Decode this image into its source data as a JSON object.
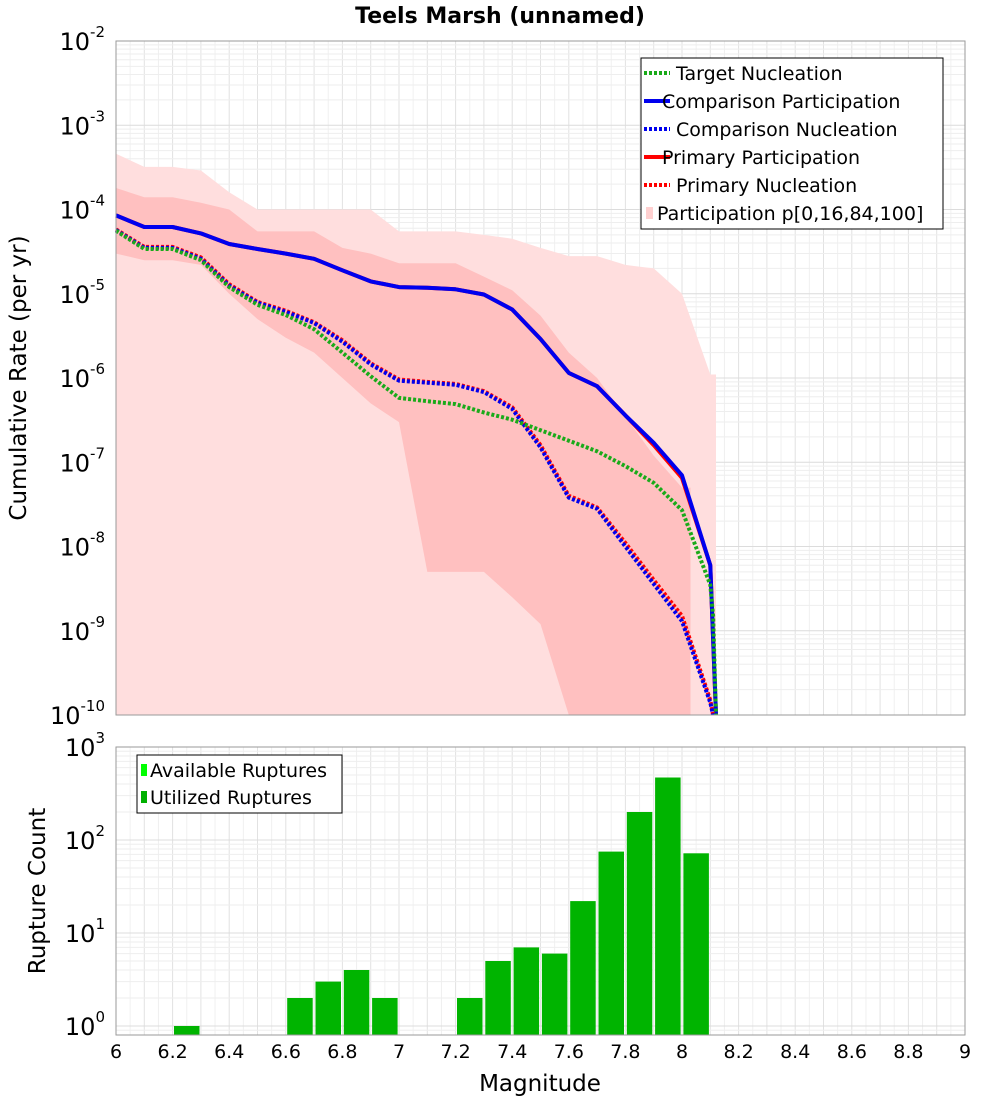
{
  "chart_data": [
    {
      "type": "line",
      "title": "Teels Marsh (unnamed)",
      "xlabel": "Magnitude",
      "ylabel": "Cumulative Rate (per yr)",
      "xlim": [
        6,
        9
      ],
      "ylim": [
        1e-10,
        0.01
      ],
      "yscale": "log",
      "ytick_base": "10",
      "yticks": [
        {
          "exp": "-10",
          "value": 1e-10
        },
        {
          "exp": "-9",
          "value": 1e-09
        },
        {
          "exp": "-8",
          "value": 1e-08
        },
        {
          "exp": "-7",
          "value": 1e-07
        },
        {
          "exp": "-6",
          "value": 1e-06
        },
        {
          "exp": "-5",
          "value": 1e-05
        },
        {
          "exp": "-4",
          "value": 0.0001
        },
        {
          "exp": "-3",
          "value": 0.001
        },
        {
          "exp": "-2",
          "value": 0.01
        }
      ],
      "legend_position": "top-right",
      "legend": [
        {
          "label": "Target Nucleation",
          "color": "#1aaa1a",
          "style": "dotted"
        },
        {
          "label": "Comparison Participation",
          "color": "#0000ee",
          "style": "solid"
        },
        {
          "label": "Comparison Nucleation",
          "color": "#0000ee",
          "style": "dotted"
        },
        {
          "label": "Primary Participation",
          "color": "#ff0000",
          "style": "solid"
        },
        {
          "label": "Primary Nucleation",
          "color": "#ff0000",
          "style": "dotted"
        },
        {
          "label": "Participation p[0,16,84,100]",
          "color": "#ffd0d0",
          "style": "box"
        }
      ],
      "bands": [
        {
          "name": "p0-p100",
          "color": "#ffdede",
          "x": [
            6.0,
            6.1,
            6.2,
            6.3,
            6.4,
            6.5,
            6.6,
            6.7,
            6.8,
            6.9,
            7.0,
            7.1,
            7.2,
            7.3,
            7.4,
            7.5,
            7.6,
            7.7,
            7.8,
            7.9,
            8.0,
            8.1,
            8.12
          ],
          "upper": [
            0.00046,
            0.00032,
            0.00032,
            0.00029,
            0.00016,
            0.0001,
            0.0001,
            0.0001,
            0.0001,
            0.0001,
            5.5e-05,
            5.5e-05,
            5.5e-05,
            5e-05,
            4.5e-05,
            3.5e-05,
            2.8e-05,
            2.8e-05,
            2.2e-05,
            2e-05,
            1e-05,
            1.1e-06,
            1.1e-06
          ],
          "lower": [
            1e-10,
            1e-10,
            1e-10,
            1e-10,
            1e-10,
            1e-10,
            1e-10,
            1e-10,
            1e-10,
            1e-10,
            1e-10,
            1e-10,
            1e-10,
            1e-10,
            1e-10,
            1e-10,
            1e-10,
            1e-10,
            1e-10,
            1e-10,
            1e-10,
            1e-10,
            1e-10
          ]
        },
        {
          "name": "p16-p84",
          "color": "#ffc0c0",
          "x": [
            6.0,
            6.1,
            6.2,
            6.3,
            6.4,
            6.5,
            6.6,
            6.7,
            6.8,
            6.9,
            7.0,
            7.1,
            7.2,
            7.3,
            7.4,
            7.5,
            7.6,
            7.7,
            7.8,
            7.9,
            8.0,
            8.03
          ],
          "upper": [
            0.00018,
            0.00014,
            0.00014,
            0.00012,
            0.0001,
            5.5e-05,
            5.5e-05,
            5.5e-05,
            3.5e-05,
            3e-05,
            2.3e-05,
            2.3e-05,
            2.3e-05,
            1.6e-05,
            1.1e-05,
            5.5e-06,
            2e-06,
            1e-06,
            3.5e-07,
            1.2e-07,
            5e-08,
            5e-08
          ],
          "lower": [
            3e-05,
            2.5e-05,
            2.5e-05,
            2.2e-05,
            1e-05,
            5e-06,
            3e-06,
            2e-06,
            1e-06,
            5e-07,
            3e-07,
            5e-09,
            5e-09,
            5e-09,
            2.5e-09,
            1.2e-09,
            1e-10,
            1e-10,
            1e-10,
            1e-10,
            1e-10,
            1e-10
          ]
        }
      ],
      "series": [
        {
          "name": "Primary Participation",
          "color": "#ff0000",
          "style": "solid",
          "x": [
            6.0,
            6.1,
            6.2,
            6.3,
            6.4,
            6.5,
            6.6,
            6.7,
            6.8,
            6.9,
            7.0,
            7.1,
            7.2,
            7.3,
            7.4,
            7.5,
            7.6,
            7.7,
            7.8,
            7.9,
            8.0,
            8.1,
            8.12
          ],
          "y": [
            8.5e-05,
            6.2e-05,
            6.2e-05,
            5.2e-05,
            3.9e-05,
            3.4e-05,
            3e-05,
            2.6e-05,
            1.9e-05,
            1.4e-05,
            1.2e-05,
            1.18e-05,
            1.13e-05,
            9.8e-06,
            6.5e-06,
            2.9e-06,
            1.15e-06,
            8e-07,
            3.6e-07,
            1.6e-07,
            6.5e-08,
            6e-09,
            1e-10
          ]
        },
        {
          "name": "Comparison Participation",
          "color": "#0000ee",
          "style": "solid",
          "x": [
            6.0,
            6.1,
            6.2,
            6.3,
            6.4,
            6.5,
            6.6,
            6.7,
            6.8,
            6.9,
            7.0,
            7.1,
            7.2,
            7.3,
            7.4,
            7.5,
            7.6,
            7.7,
            7.8,
            7.9,
            8.0,
            8.1,
            8.12
          ],
          "y": [
            8.5e-05,
            6.2e-05,
            6.2e-05,
            5.2e-05,
            3.9e-05,
            3.4e-05,
            3e-05,
            2.6e-05,
            1.9e-05,
            1.4e-05,
            1.2e-05,
            1.18e-05,
            1.13e-05,
            9.8e-06,
            6.5e-06,
            2.9e-06,
            1.15e-06,
            8e-07,
            3.6e-07,
            1.7e-07,
            7e-08,
            6e-09,
            1e-10
          ]
        },
        {
          "name": "Primary Nucleation",
          "color": "#ff0000",
          "style": "dotted",
          "x": [
            6.0,
            6.1,
            6.2,
            6.3,
            6.4,
            6.5,
            6.6,
            6.7,
            6.8,
            6.9,
            7.0,
            7.1,
            7.2,
            7.3,
            7.4,
            7.5,
            7.6,
            7.7,
            7.8,
            7.9,
            8.0,
            8.1,
            8.11
          ],
          "y": [
            5.8e-05,
            3.6e-05,
            3.6e-05,
            2.7e-05,
            1.3e-05,
            8e-06,
            6.3e-06,
            4.6e-06,
            2.8e-06,
            1.5e-06,
            9.6e-07,
            9e-07,
            8.5e-07,
            7e-07,
            4.5e-07,
            1.6e-07,
            4e-08,
            2.9e-08,
            1.1e-08,
            4e-09,
            1.5e-09,
            1.5e-10,
            1e-10
          ]
        },
        {
          "name": "Comparison Nucleation",
          "color": "#0000ee",
          "style": "dotted",
          "x": [
            6.0,
            6.1,
            6.2,
            6.3,
            6.4,
            6.5,
            6.6,
            6.7,
            6.8,
            6.9,
            7.0,
            7.1,
            7.2,
            7.3,
            7.4,
            7.5,
            7.6,
            7.7,
            7.8,
            7.9,
            8.0,
            8.1,
            8.11
          ],
          "y": [
            5.7e-05,
            3.5e-05,
            3.5e-05,
            2.6e-05,
            1.25e-05,
            7.8e-06,
            6.1e-06,
            4.5e-06,
            2.7e-06,
            1.45e-06,
            9.3e-07,
            8.8e-07,
            8.3e-07,
            6.8e-07,
            4.3e-07,
            1.5e-07,
            3.8e-08,
            2.8e-08,
            1e-08,
            3.6e-09,
            1.3e-09,
            1.4e-10,
            1e-10
          ]
        },
        {
          "name": "Target Nucleation",
          "color": "#1aaa1a",
          "style": "dotted",
          "x": [
            6.0,
            6.1,
            6.2,
            6.3,
            6.4,
            6.5,
            6.6,
            6.7,
            6.8,
            6.9,
            7.0,
            7.1,
            7.2,
            7.3,
            7.4,
            7.5,
            7.6,
            7.7,
            7.8,
            7.9,
            8.0,
            8.1,
            8.11,
            8.12
          ],
          "y": [
            5.6e-05,
            3.4e-05,
            3.4e-05,
            2.5e-05,
            1.2e-05,
            7.4e-06,
            5.6e-06,
            3.8e-06,
            2e-06,
            1.05e-06,
            5.8e-07,
            5.3e-07,
            4.9e-07,
            3.9e-07,
            3.2e-07,
            2.4e-07,
            1.8e-07,
            1.35e-07,
            9e-08,
            5.7e-08,
            2.7e-08,
            3.5e-09,
            1.5e-09,
            1e-10
          ]
        }
      ]
    },
    {
      "type": "bar",
      "xlabel": "Magnitude",
      "ylabel": "Rupture Count",
      "xlim": [
        6,
        9
      ],
      "ylim": [
        0.8,
        1000
      ],
      "yscale": "log",
      "ytick_base": "10",
      "yticks": [
        {
          "exp": "0",
          "value": 1
        },
        {
          "exp": "1",
          "value": 10
        },
        {
          "exp": "2",
          "value": 100
        },
        {
          "exp": "3",
          "value": 1000
        }
      ],
      "xticks": [
        "6",
        "6.2",
        "6.4",
        "6.6",
        "6.8",
        "7",
        "7.2",
        "7.4",
        "7.6",
        "7.8",
        "8",
        "8.2",
        "8.4",
        "8.6",
        "8.8",
        "9"
      ],
      "legend_position": "top-left",
      "legend": [
        {
          "label": "Available Ruptures",
          "color": "#00ff00"
        },
        {
          "label": "Utilized Ruptures",
          "color": "#00b000"
        }
      ],
      "bar_width": 0.09,
      "series": [
        {
          "name": "Utilized Ruptures",
          "color": "#00b400",
          "x": [
            6.25,
            6.65,
            6.75,
            6.85,
            6.95,
            7.25,
            7.35,
            7.45,
            7.55,
            7.65,
            7.75,
            7.85,
            7.95,
            8.05
          ],
          "values": [
            1,
            2,
            3,
            4,
            2,
            2,
            5,
            7,
            6,
            22,
            75,
            200,
            470,
            72
          ]
        }
      ]
    }
  ]
}
